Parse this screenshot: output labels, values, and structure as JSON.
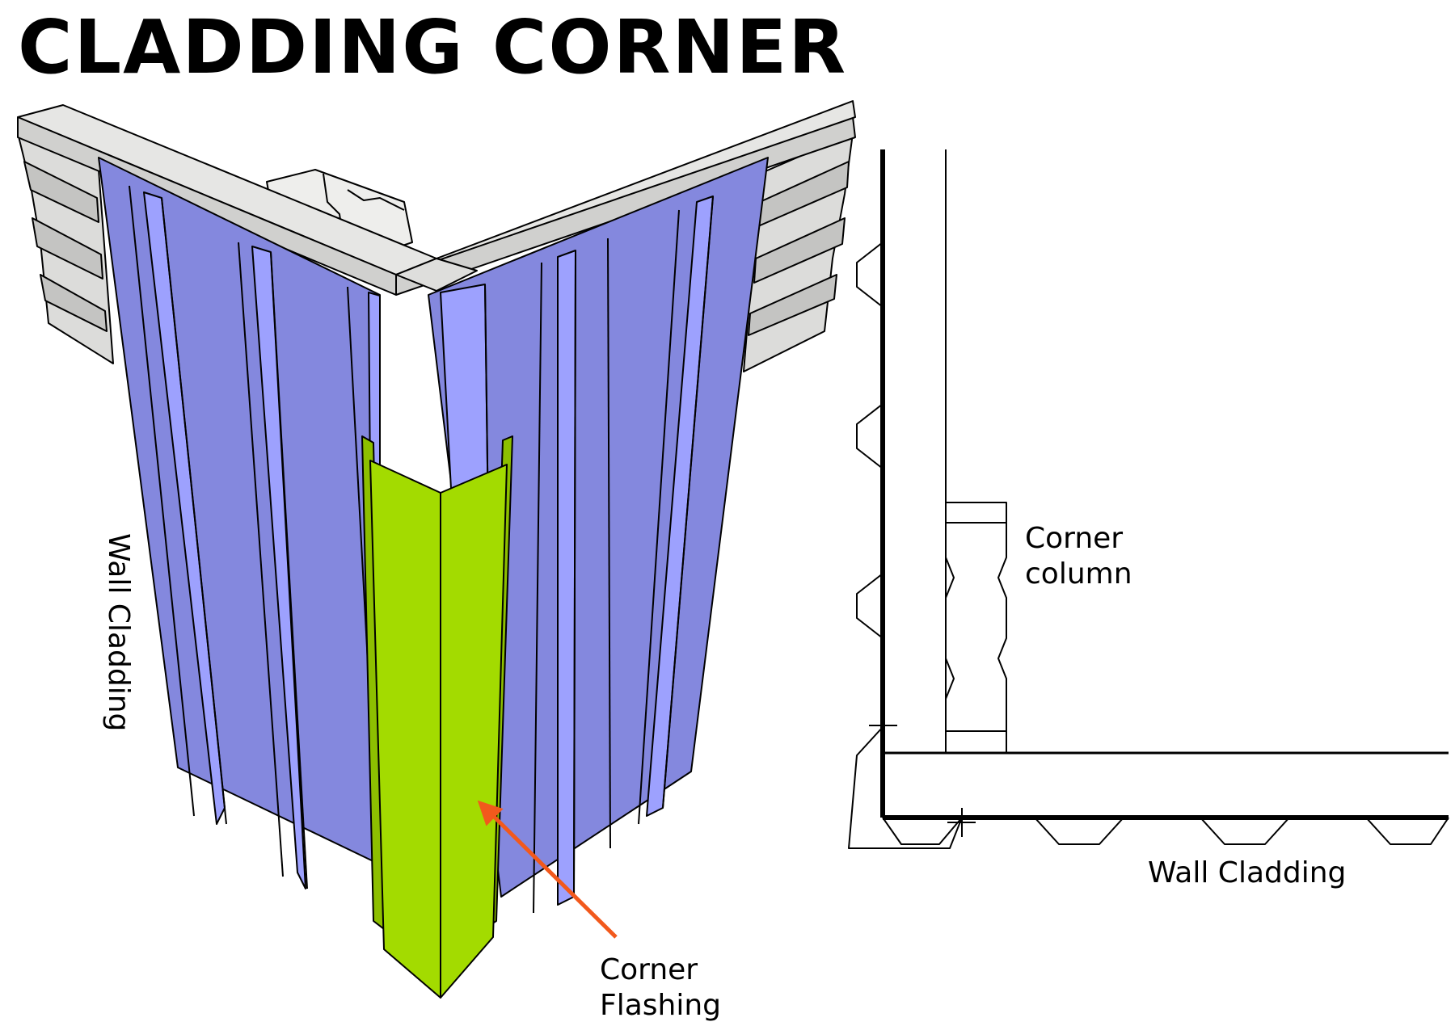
{
  "title": "CLADDING CORNER",
  "labels": {
    "wall_cladding_3d": "Wall Cladding",
    "corner_flashing_line1": "Corner",
    "corner_flashing_line2": "Flashing",
    "corner_column_line1": "Corner",
    "corner_column_line2": "column",
    "wall_cladding_plan": "Wall Cladding"
  },
  "colors": {
    "cladding_dark": "#8488DE",
    "cladding_light": "#9DA1FE",
    "flashing": "#A3DB00",
    "flashing_dark": "#8DBF00",
    "beam": "#E6E6E4",
    "back_sheet": "#D9D9D7",
    "arrow": "#F2591C",
    "line": "#000000"
  }
}
